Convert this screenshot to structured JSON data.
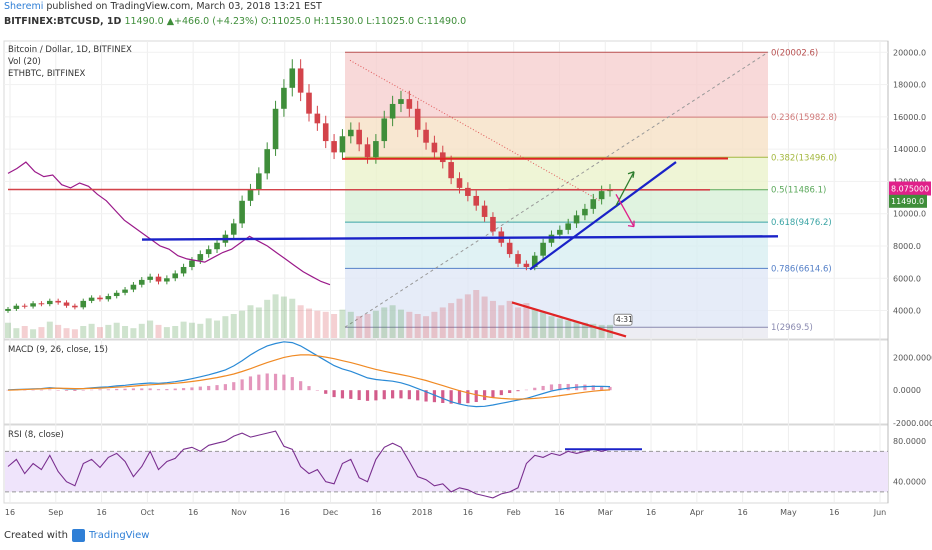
{
  "header": {
    "author": "Sheremi",
    "published_text": " published on TradingView.com, March 03, 2018 13:21 EST",
    "symbol": "BITFINEX:BTCUSD, 1D",
    "change": "11490.0 ▲+466.0 (+4.23%)",
    "ohlc": "O:11025.0 H:11530.0 L:11025.0 C:11490.0"
  },
  "footer": {
    "created_with": "Created with",
    "brand": "TradingView"
  },
  "colors": {
    "up": "#3f8e3a",
    "down": "#d3434a",
    "blue_line": "#1a22c8",
    "red_line": "#e02424",
    "price_line": "#9b1a8a",
    "macd": "#2a8ad6",
    "signal": "#f08a24",
    "rsi": "#7a2f8f",
    "rsi_band": "#efe4fb"
  },
  "chart_data": [
    {
      "type": "candlestick",
      "title": "Bitcoin / Dollar, 1D, BITFINEX",
      "overlays": [
        "Vol (20)",
        "ETHBTC, BITFINEX"
      ],
      "ylim": [
        2300,
        20700
      ],
      "y_ticks": [
        "20000.0",
        "18000.0",
        "16000.0",
        "14000.0",
        "12000.0",
        "10000.0",
        "8000.0",
        "6000.0",
        "4000.0"
      ],
      "y_tick_values": [
        20000,
        18000,
        16000,
        14000,
        12000,
        10000,
        8000,
        6000,
        4000
      ],
      "x_ticks": [
        "16",
        "Sep",
        "16",
        "Oct",
        "16",
        "Nov",
        "16",
        "Dec",
        "16",
        "2018",
        "16",
        "Feb",
        "16",
        "Mar",
        "16",
        "Apr",
        "16",
        "May",
        "16",
        "Jun"
      ],
      "close_series": [
        4100,
        4300,
        4250,
        4450,
        4400,
        4600,
        4500,
        4300,
        4200,
        4600,
        4800,
        4700,
        4900,
        5100,
        5300,
        5600,
        5900,
        6100,
        5800,
        6000,
        6300,
        6700,
        7100,
        7500,
        7800,
        8200,
        8700,
        9400,
        10800,
        11500,
        12500,
        14000,
        16500,
        17800,
        19000,
        17500,
        16200,
        15600,
        14500,
        13800,
        14800,
        15200,
        14300,
        13500,
        14500,
        15900,
        16800,
        17100,
        16500,
        15200,
        14400,
        13800,
        13200,
        12200,
        11600,
        11100,
        10500,
        9800,
        8900,
        8200,
        7500,
        6900,
        6700,
        7400,
        8200,
        8700,
        9000,
        9400,
        9900,
        10300,
        10900,
        11400,
        11490
      ],
      "volume_series": [
        14,
        9,
        11,
        8,
        10,
        15,
        12,
        9,
        8,
        11,
        13,
        10,
        12,
        14,
        11,
        9,
        13,
        16,
        12,
        10,
        11,
        15,
        14,
        13,
        18,
        16,
        20,
        22,
        25,
        30,
        28,
        35,
        40,
        38,
        36,
        30,
        27,
        25,
        24,
        22,
        26,
        24,
        20,
        22,
        25,
        28,
        30,
        26,
        24,
        22,
        20,
        24,
        28,
        32,
        36,
        40,
        44,
        38,
        34,
        30,
        34,
        28,
        32,
        26,
        24,
        20,
        18,
        16,
        15,
        14,
        13,
        12,
        12
      ],
      "fib_levels": [
        {
          "label": "0(20002.6)",
          "value": 20002.6
        },
        {
          "label": "0.236(15982.8)",
          "value": 15982.8
        },
        {
          "label": "0.382(13496.0)",
          "value": 13496.0
        },
        {
          "label": "0.5(11486.1)",
          "value": 11486.1
        },
        {
          "label": "0.618(9476.2)",
          "value": 9476.2
        },
        {
          "label": "0.786(6614.6)",
          "value": 6614.6
        },
        {
          "label": "1(2969.5)",
          "value": 2969.5
        }
      ],
      "price_tags": [
        "8.075000",
        "11490.0"
      ],
      "annotation": "4:31",
      "grid": true
    },
    {
      "type": "line",
      "title": "MACD (9, 26, close, 15)",
      "y_ticks": [
        "2000.0000",
        "0.0000",
        "-2000.0000"
      ],
      "y_tick_values": [
        2000,
        0,
        -2000
      ],
      "ylim": [
        -2000,
        3000
      ],
      "series": [
        {
          "name": "MACD",
          "values": [
            20,
            40,
            60,
            80,
            100,
            150,
            120,
            80,
            60,
            100,
            140,
            180,
            200,
            260,
            300,
            360,
            400,
            440,
            420,
            460,
            520,
            600,
            700,
            820,
            940,
            1080,
            1240,
            1480,
            1800,
            2150,
            2450,
            2700,
            2850,
            2950,
            2900,
            2700,
            2400,
            2100,
            1800,
            1500,
            1300,
            1150,
            950,
            750,
            650,
            600,
            550,
            450,
            300,
            100,
            -100,
            -300,
            -500,
            -700,
            -850,
            -950,
            -1000,
            -980,
            -900,
            -800,
            -700,
            -600,
            -500,
            -350,
            -200,
            -50,
            50,
            120,
            180,
            220,
            240,
            230,
            220
          ]
        },
        {
          "name": "Signal",
          "values": [
            0,
            20,
            40,
            60,
            80,
            110,
            120,
            110,
            100,
            100,
            110,
            130,
            150,
            180,
            210,
            250,
            290,
            330,
            360,
            390,
            420,
            470,
            530,
            600,
            680,
            770,
            870,
            990,
            1140,
            1310,
            1500,
            1680,
            1850,
            2000,
            2100,
            2150,
            2150,
            2100,
            2020,
            1920,
            1800,
            1680,
            1550,
            1400,
            1270,
            1150,
            1050,
            950,
            850,
            720,
            590,
            430,
            280,
            120,
            -30,
            -160,
            -280,
            -380,
            -450,
            -500,
            -530,
            -540,
            -530,
            -500,
            -460,
            -400,
            -330,
            -260,
            -190,
            -120,
            -60,
            -10,
            20
          ]
        }
      ],
      "histogram": [
        20,
        20,
        20,
        20,
        20,
        40,
        0,
        -30,
        -40,
        0,
        30,
        50,
        50,
        80,
        90,
        110,
        110,
        110,
        60,
        70,
        100,
        130,
        170,
        220,
        260,
        310,
        370,
        490,
        660,
        840,
        950,
        1020,
        1000,
        950,
        800,
        550,
        250,
        0,
        -220,
        -420,
        -500,
        -530,
        -600,
        -650,
        -620,
        -550,
        -500,
        -500,
        -550,
        -620,
        -690,
        -730,
        -780,
        -820,
        -820,
        -790,
        -720,
        -600,
        -450,
        -300,
        -170,
        -60,
        30,
        150,
        260,
        350,
        380,
        380,
        370,
        340,
        300,
        240,
        200
      ]
    },
    {
      "type": "line",
      "title": "RSI (8, close)",
      "y_ticks": [
        "80.0000",
        "40.0000"
      ],
      "y_tick_values": [
        80,
        40
      ],
      "ylim": [
        20,
        95
      ],
      "band": [
        30,
        70
      ],
      "series": [
        {
          "name": "RSI",
          "values": [
            55,
            62,
            48,
            58,
            52,
            66,
            50,
            40,
            36,
            58,
            62,
            54,
            64,
            68,
            60,
            45,
            55,
            70,
            52,
            60,
            63,
            72,
            74,
            70,
            76,
            78,
            80,
            85,
            88,
            84,
            86,
            88,
            90,
            75,
            72,
            55,
            48,
            52,
            40,
            38,
            58,
            62,
            44,
            40,
            62,
            74,
            78,
            74,
            60,
            45,
            42,
            36,
            38,
            30,
            34,
            32,
            28,
            26,
            24,
            28,
            30,
            34,
            58,
            66,
            64,
            68,
            66,
            70,
            68,
            70,
            72,
            70,
            72
          ]
        }
      ]
    }
  ]
}
